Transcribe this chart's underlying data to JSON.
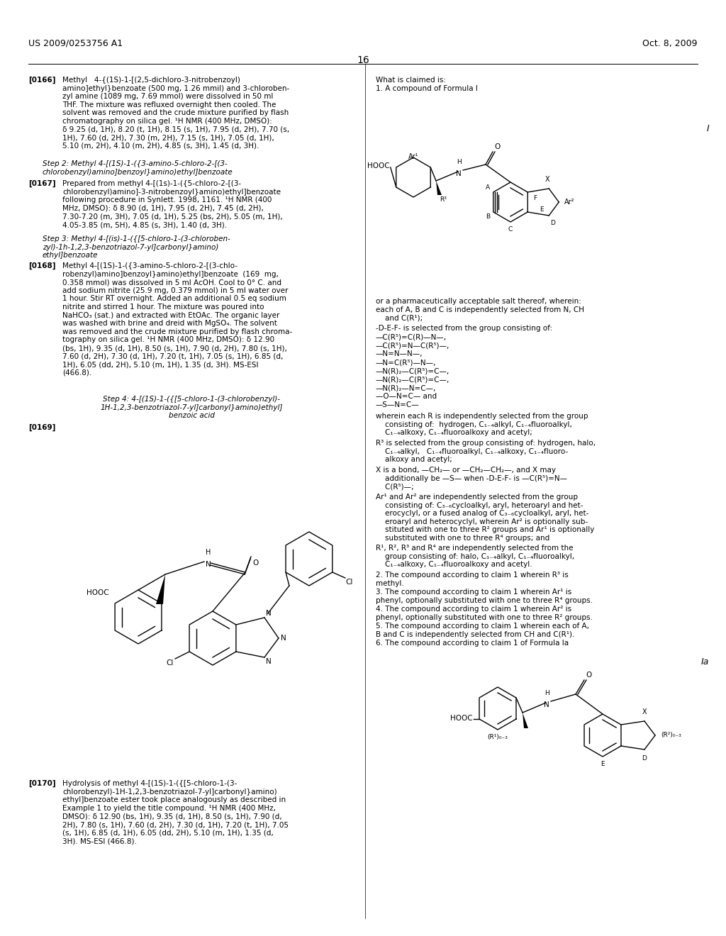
{
  "bg_color": "#ffffff",
  "header_left": "US 2009/0253756 A1",
  "header_right": "Oct. 8, 2009",
  "page_number": "16",
  "font_size_body": 7.5,
  "font_size_header": 9.0
}
